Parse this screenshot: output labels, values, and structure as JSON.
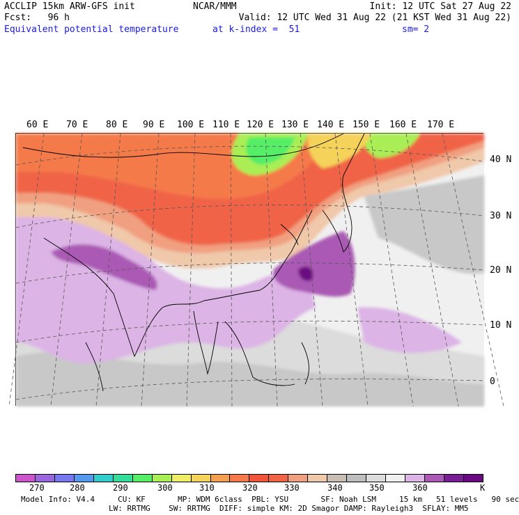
{
  "header": {
    "line1_left": "ACCLIP 15km ARW-GFS init",
    "line1_mid": "NCAR/MMM",
    "line1_right": "Init: 12 UTC Sat 27 Aug 22",
    "line2_left": "Fcst:   96 h",
    "line2_right": "Valid: 12 UTC Wed 31 Aug 22 (21 KST Wed 31 Aug 22)",
    "line3_left": "Equivalent potential temperature",
    "line3_mid": "at k-index =  51",
    "line3_right": "sm= 2"
  },
  "map": {
    "longitude_labels": [
      "60 E",
      "70 E",
      "80 E",
      "90 E",
      "100 E",
      "110 E",
      "120 E",
      "130 E",
      "140 E",
      "150 E",
      "160 E",
      "170 E"
    ],
    "latitude_labels": [
      "40 N",
      "30 N",
      "20 N",
      "10 N",
      "0"
    ]
  },
  "colorbar": {
    "colors": [
      "#cc55cc",
      "#9966dd",
      "#7777ee",
      "#5599ee",
      "#33cccc",
      "#33dd99",
      "#55ee66",
      "#aaee55",
      "#eeee66",
      "#f5d25a",
      "#f5a050",
      "#f57a4a",
      "#f0553c",
      "#f06446",
      "#f0a080",
      "#f0c8aa",
      "#c8beb4",
      "#bebebe",
      "#dcdcdc",
      "#f0f0f0",
      "#dcb4e6",
      "#aa5ab4",
      "#7a1e96",
      "#6a0a82"
    ],
    "tick_labels": [
      "270",
      "280",
      "290",
      "300",
      "310",
      "320",
      "330",
      "340",
      "350",
      "360"
    ],
    "unit": "K"
  },
  "footer": {
    "line1": "Model Info: V4.4     CU: KF       MP: WDM 6class  PBL: YSU       SF: Noah LSM     15 km   51 levels   90 sec",
    "line2": "LW: RRTMG    SW: RRTMG  DIFF: simple KM: 2D Smagor DAMP: Rayleigh3  SFLAY: MM5"
  }
}
